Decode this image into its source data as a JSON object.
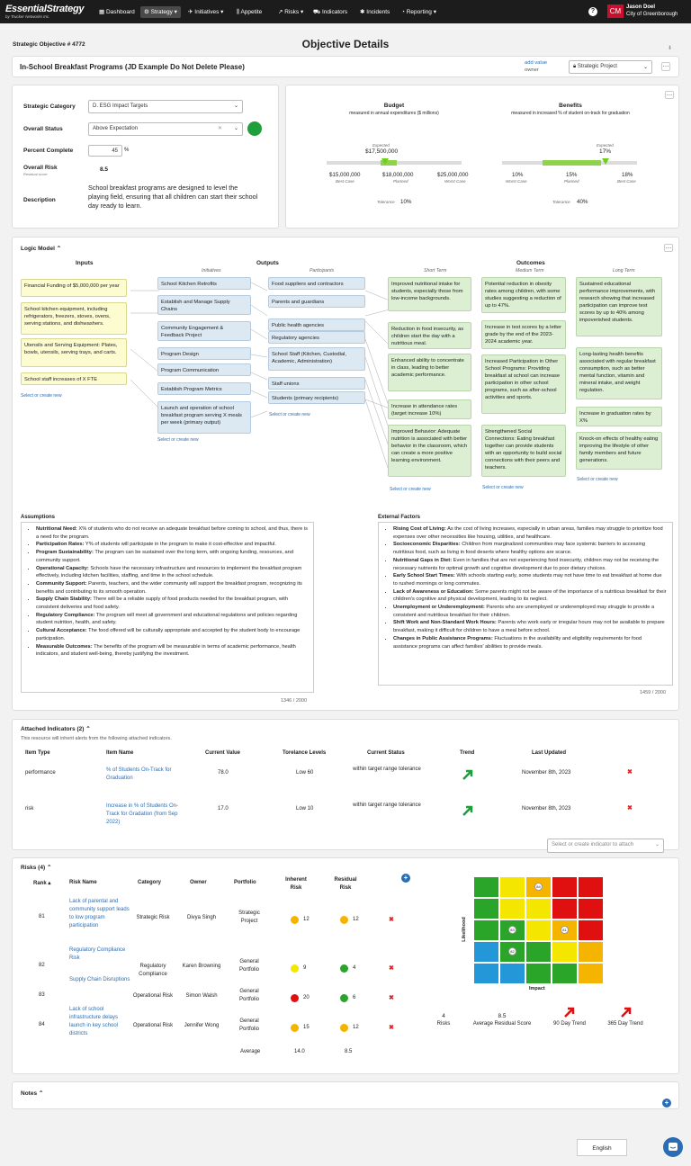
{
  "nav": {
    "logo": "EssentialStrategy",
    "logo_sub": "by Trucker Networks Inc.",
    "items": [
      "Dashboard",
      "Strategy",
      "Initiatives",
      "Appetite",
      "Risks",
      "Indicators",
      "Incidents",
      "Reporting"
    ],
    "user_initials": "CM",
    "user_name": "Jason Doel",
    "user_org": "City of Greenborough",
    "help": "?"
  },
  "header": {
    "objective_no": "Strategic Objective # 4772",
    "title": "Objective Details",
    "name": "In-School Breakfast Programs (JD Example Do Not Delete Please)",
    "add_value": "add value",
    "owner": "owner",
    "type": "Strategic Project"
  },
  "details": {
    "cat_label": "Strategic Category",
    "cat_value": "D. ESG Impact Targets",
    "status_label": "Overall Status",
    "status_value": "Above Expectation",
    "status_color": "#1f9e3c",
    "pct_label": "Percent Complete",
    "pct_value": "45",
    "pct_unit": "%",
    "risk_label": "Overall Risk",
    "risk_sub": "Residual score",
    "risk_value": "8.5",
    "desc_label": "Description",
    "desc_value": "School breakfast programs are designed to level the playing field, ensuring that all children can start their school day ready to learn."
  },
  "budget": {
    "title": "Budget",
    "sub": "measured in annual expenditures ($ millions)",
    "expected_lbl": "Expected",
    "expected": "$17,500,000",
    "best": "$15,000,000",
    "best_lbl": "Best Case",
    "planned": "$18,000,000",
    "planned_lbl": "Planned",
    "worst": "$25,000,000",
    "worst_lbl": "Worst Case",
    "tol_lbl": "Tolerance",
    "tol": "10%"
  },
  "benefits": {
    "title": "Benefits",
    "sub": "measured in increased % of student on-track for graduation",
    "expected_lbl": "Expected",
    "expected": "17%",
    "worst": "10%",
    "worst_lbl": "Worst Case",
    "planned": "15%",
    "planned_lbl": "Planned",
    "best": "18%",
    "best_lbl": "Best Case",
    "tol_lbl": "Tolerance",
    "tol": "40%"
  },
  "logic": {
    "title": "Logic Model",
    "inputs_hd": "Inputs",
    "outputs_hd": "Outputs",
    "outcomes_hd": "Outcomes",
    "initiatives": "Initiatives",
    "participants": "Participants",
    "short": "Short Term",
    "medium": "Medium Term",
    "long": "Long Term",
    "select": "Select or create new",
    "inputs": [
      "Financial Funding of $5,000,000 per year",
      "School kitchen equipment, including refrigerators, freezers, stoves, ovens, serving stations, and dishwashers.",
      "Utensils and Serving Equipment: Plates, bowls, utensils, serving trays, and carts.",
      "School staff increases of X FTE"
    ],
    "init": [
      "School Kitchen Retrofits",
      "Establish and Manage Supply Chains",
      "Community Engagement & Feedback Project",
      "Program Design",
      "Program Communication",
      "Establish Program Metrics",
      "Launch and operation of school breakfast program serving X meals per week (primary output)"
    ],
    "part": [
      "Food suppliers and contractors",
      "Parents and guardians",
      "Public health agencies",
      "Regulatory agencies",
      "School Staff (Kitchen, Custodial, Academic, Administration)",
      "Staff unions",
      "Students (primary recipients)"
    ],
    "st": [
      "Improved nutritional intake for students, especially those from low-income backgrounds.",
      "Reduction in food insecurity, as children start the day with a nutritious meal.",
      "Enhanced ability to concentrate in class, leading to better academic performance.",
      "Increase in attendance rates (target increase 10%)",
      "Improved Behavior: Adequate nutrition is associated with better behavior in the classroom, which can create a more positive learning environment."
    ],
    "mt": [
      "Potential reduction in obesity rates among children, with some studies suggesting a reduction of up to 47%.",
      "Increase in test scores by a letter grade by the end of the 2023-2024 academic year.",
      "Increased Participation in Other School Programs: Providing breakfast at school can increase participation in other school programs, such as after-school activities and sports.",
      "Strengthened Social Connections: Eating breakfast together can provide students with an opportunity to build social connections with their peers and teachers."
    ],
    "lt": [
      "Sustained educational performance improvements, with research showing that increased participation can improve test scores by up to 40% among impoverished students.",
      "Long-lasting health benefits associated with regular breakfast consumption, such as better mental function, vitamin and mineral intake, and weight regulation.",
      "Increase in graduation rates by X%",
      "Knock-on effects of healthy eating improving the lifestyle of other family members and future generations."
    ]
  },
  "assumptions": {
    "title": "Assumptions",
    "count": "1346 / 2000",
    "items": [
      [
        "Nutritional Need:",
        "X% of students who do not receive an adequate breakfast before coming to school, and thus, there is a need for the program."
      ],
      [
        "Participation Rates:",
        "Y% of students will participate in the program to make it cost-effective and impactful."
      ],
      [
        "Program Sustainability:",
        "The program can be sustained over the long term, with ongoing funding, resources, and community support."
      ],
      [
        "Operational Capacity:",
        "Schools have the necessary infrastructure and resources to implement the breakfast program effectively, including kitchen facilities, staffing, and time in the school schedule."
      ],
      [
        "Community Support:",
        "Parents, teachers, and the wider community will support the breakfast program, recognizing its benefits and contributing to its smooth operation."
      ],
      [
        "Supply Chain Stability:",
        "There will be a reliable supply of food products needed for the breakfast program, with consistent deliveries and food safety."
      ],
      [
        "Regulatory Compliance:",
        "The program will meet all government and educational regulations and policies regarding student nutrition, health, and safety."
      ],
      [
        "Cultural Acceptance:",
        "The food offered will be culturally appropriate and accepted by the student body to encourage participation."
      ],
      [
        "Measurable Outcomes:",
        "The benefits of the program will be measurable in terms of academic performance, health indicators, and student well-being, thereby justifying the investment."
      ]
    ]
  },
  "external": {
    "title": "External Factors",
    "count": "1459 / 2000",
    "items": [
      [
        "Rising Cost of Living:",
        "As the cost of living increases, especially in urban areas, families may struggle to prioritize food expenses over other necessities like housing, utilities, and healthcare."
      ],
      [
        "Socioeconomic Disparities:",
        "Children from marginalized communities may face systemic barriers to accessing nutritious food, such as living in food deserts where healthy options are scarce."
      ],
      [
        "Nutritional Gaps in Diet:",
        "Even in families that are not experiencing food insecurity, children may not be receiving the necessary nutrients for optimal growth and cognitive development due to poor dietary choices."
      ],
      [
        "Early School Start Times:",
        "With schools starting early, some students may not have time to eat breakfast at home due to rushed mornings or long commutes."
      ],
      [
        "Lack of Awareness or Education:",
        "Some parents might not be aware of the importance of a nutritious breakfast for their children's cognitive and physical development, leading to its neglect."
      ],
      [
        "Unemployment or Underemployment:",
        "Parents who are unemployed or underemployed may struggle to provide a consistent and nutritious breakfast for their children."
      ],
      [
        "Shift Work and Non-Standard Work Hours:",
        "Parents who work early or irregular hours may not be available to prepare breakfast, making it difficult for children to have a meal before school."
      ],
      [
        "Changes in Public Assistance Programs:",
        "Fluctuations in the availability and eligibility requirements for food assistance programs can affect families' abilities to provide meals."
      ]
    ]
  },
  "indicators": {
    "title": "Attached Indicators",
    "count": "(2)",
    "note": "This resource will inherit alerts from the following attached indicators.",
    "cols": [
      "Item Type",
      "Item Name",
      "Current Value",
      "Torelance Levels",
      "Current Status",
      "Trend",
      "Last Updated"
    ],
    "rows": [
      {
        "type": "performance",
        "name": "% of Students On-Track for Graduation",
        "value": "78.0",
        "tol": "Low 60",
        "status": "within target range tolerance",
        "updated": "November 8th, 2023"
      },
      {
        "type": "risk",
        "name": "Increase in % of Students On-Track for Gradation (from Sep 2022)",
        "value": "17.0",
        "tol": "Low 10",
        "status": "within target range tolerance",
        "updated": "November 8th, 2023"
      }
    ],
    "attach_placeholder": "Select or create indicator to attach"
  },
  "risks": {
    "title": "Risks",
    "count": "(4)",
    "cols": [
      "Rank",
      "Risk Name",
      "Category",
      "Owner",
      "Portfolio",
      "Inherent Risk",
      "Residual Risk"
    ],
    "rows": [
      {
        "rank": "81",
        "name": "Lack of parental and community support leads to low program participation",
        "cat": "Strategic Risk",
        "owner": "Divya Singh",
        "port": "Strategic Project",
        "inh": "12",
        "inh_c": "#f5b400",
        "res": "12",
        "res_c": "#f5b400"
      },
      {
        "rank": "82",
        "name": "Regulatory Compliance Risk",
        "cat": "Regulatory Compliance",
        "owner": "Karen Browning",
        "port": "General Portfolio",
        "inh": "9",
        "inh_c": "#f5e600",
        "res": "4",
        "res_c": "#2aa52a"
      },
      {
        "rank": "83",
        "name": "Supply Chain Disruptions",
        "cat": "Operational Risk",
        "owner": "Simon Walsh",
        "port": "General Portfolio",
        "inh": "20",
        "inh_c": "#e01010",
        "res": "6",
        "res_c": "#2aa52a"
      },
      {
        "rank": "84",
        "name": "Lack of school infrastructure delays launch in key school districts",
        "cat": "Operational Risk",
        "owner": "Jennifer Wong",
        "port": "General Portfolio",
        "inh": "15",
        "inh_c": "#f5b400",
        "res": "12",
        "res_c": "#f5b400"
      }
    ],
    "avg_lbl": "Average",
    "avg_inh": "14.0",
    "avg_res": "8.5",
    "likelihood": "Likelihood",
    "impact": "Impact",
    "sum_count": "4",
    "sum_count_lbl": "Risks",
    "sum_avg": "8.5",
    "sum_avg_lbl": "Average Residual Score",
    "t90": "90 Day Trend",
    "t365": "365 Day Trend",
    "heat": [
      [
        "#2aa52a",
        "#f5e600",
        "#f5b400",
        "#e01010",
        "#e01010"
      ],
      [
        "#2aa52a",
        "#f5e600",
        "#f5e600",
        "#e01010",
        "#e01010"
      ],
      [
        "#2aa52a",
        "#2aa52a",
        "#f5e600",
        "#f5b400",
        "#e01010"
      ],
      [
        "#2497d9",
        "#2aa52a",
        "#2aa52a",
        "#f5e600",
        "#f5b400"
      ],
      [
        "#2497d9",
        "#2497d9",
        "#2aa52a",
        "#2aa52a",
        "#f5b400"
      ]
    ],
    "markers": [
      {
        "r": 0,
        "c": 2,
        "t": "84"
      },
      {
        "r": 2,
        "c": 1,
        "t": "83"
      },
      {
        "r": 2,
        "c": 3,
        "t": "81"
      },
      {
        "r": 3,
        "c": 1,
        "t": "82"
      }
    ]
  },
  "notes": {
    "title": "Notes"
  },
  "footer": {
    "lang": "English"
  }
}
